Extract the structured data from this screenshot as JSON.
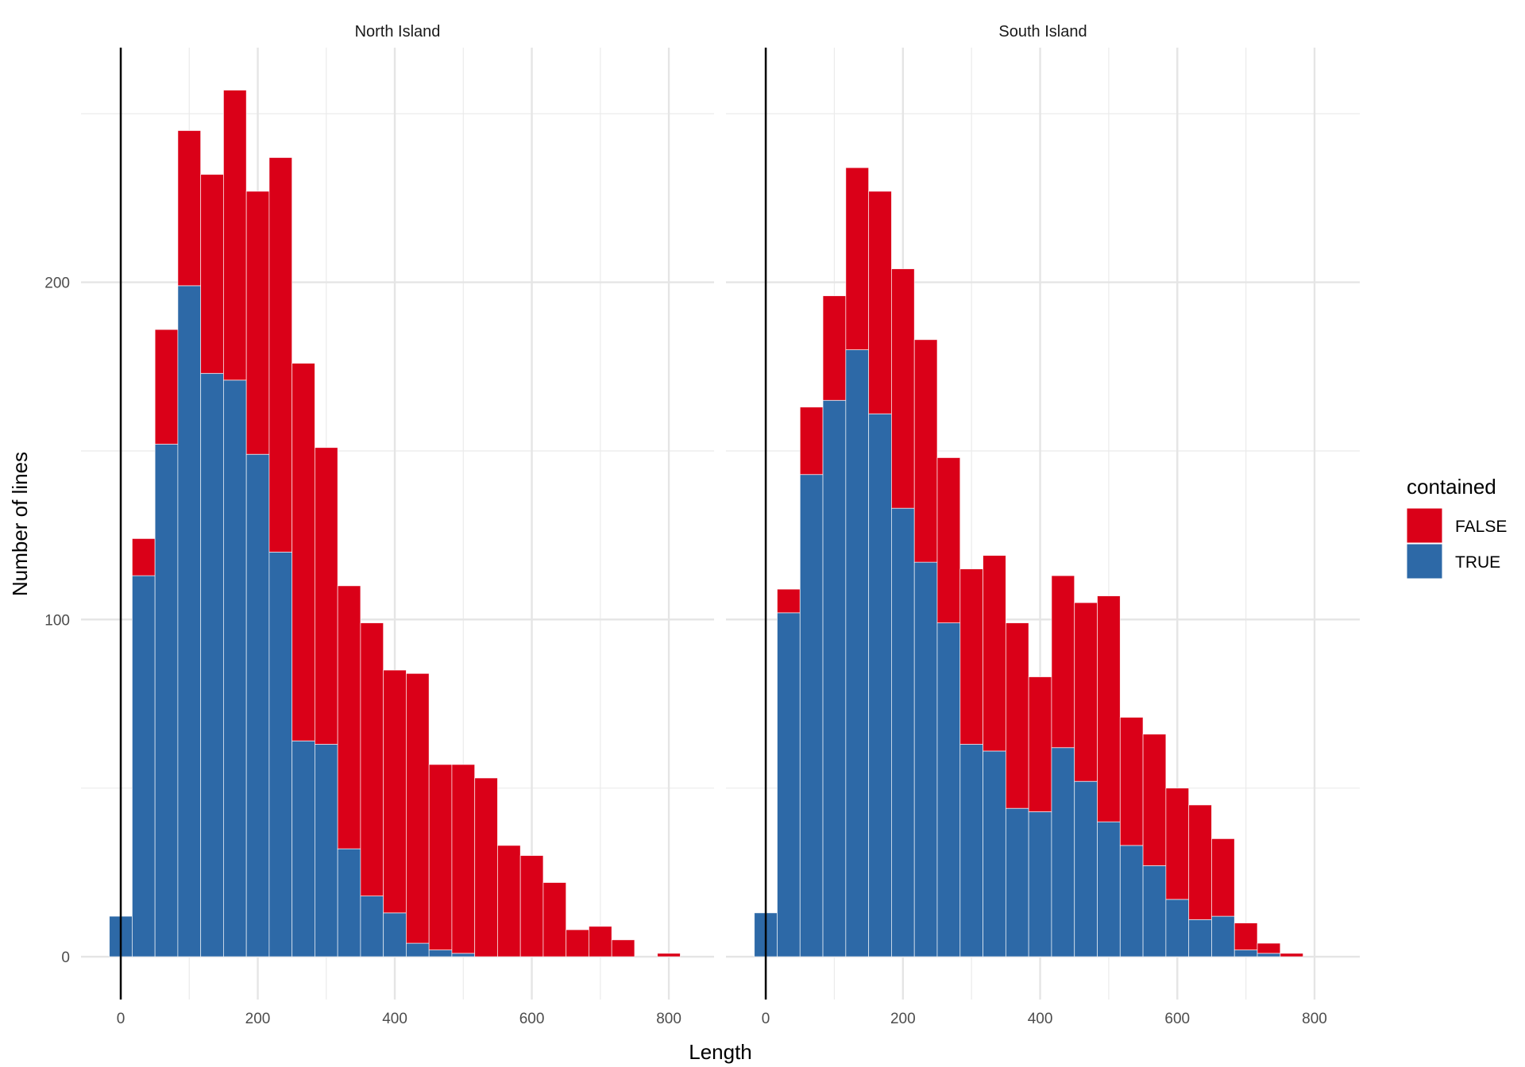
{
  "chart_data": {
    "type": "bar",
    "subtype": "stacked-histogram-faceted",
    "xlabel": "Length",
    "ylabel": "Number of lines",
    "grid": true,
    "legend": {
      "title": "contained",
      "position": "right",
      "entries": [
        {
          "label": "FALSE",
          "color": "#DA0018"
        },
        {
          "label": "TRUE",
          "color": "#2D69A7"
        }
      ]
    },
    "bin_width": 33.333,
    "bin_centers": [
      0,
      33.33,
      66.67,
      100,
      133.33,
      166.67,
      200,
      233.33,
      266.67,
      300,
      333.33,
      366.67,
      400,
      433.33,
      466.67,
      500,
      533.33,
      566.67,
      600,
      633.33,
      666.67,
      700,
      733.33,
      766.67,
      800
    ],
    "xlim": [
      -58,
      866
    ],
    "ylim": [
      -12.7,
      269.6
    ],
    "x_ticks": [
      0,
      200,
      400,
      600,
      800
    ],
    "x_tick_labels": [
      "0",
      "200",
      "400",
      "600",
      "800"
    ],
    "x_minor_ticks": [
      100,
      300,
      500,
      700
    ],
    "y_ticks": [
      0,
      100,
      200
    ],
    "y_tick_labels": [
      "0",
      "100",
      "200"
    ],
    "y_minor_ticks": [
      50,
      150,
      250
    ],
    "reference_line_x": 0,
    "panels": [
      {
        "title": "North Island",
        "series": [
          {
            "name": "TRUE",
            "values": [
              12,
              113,
              152,
              199,
              173,
              171,
              149,
              120,
              64,
              63,
              32,
              18,
              13,
              4,
              2,
              1,
              0,
              0,
              0,
              0,
              0,
              0,
              0,
              0,
              0
            ]
          },
          {
            "name": "FALSE",
            "values": [
              0,
              11,
              34,
              46,
              59,
              86,
              78,
              117,
              112,
              88,
              78,
              81,
              72,
              80,
              55,
              56,
              53,
              33,
              30,
              22,
              8,
              9,
              5,
              0,
              1
            ]
          }
        ]
      },
      {
        "title": "South Island",
        "series": [
          {
            "name": "TRUE",
            "values": [
              13,
              102,
              143,
              165,
              180,
              161,
              133,
              117,
              99,
              63,
              61,
              44,
              43,
              62,
              52,
              40,
              33,
              27,
              17,
              11,
              12,
              2,
              1,
              0,
              0
            ]
          },
          {
            "name": "FALSE",
            "values": [
              0,
              7,
              20,
              31,
              54,
              66,
              71,
              66,
              49,
              52,
              58,
              55,
              40,
              51,
              53,
              67,
              38,
              39,
              33,
              34,
              23,
              8,
              3,
              1,
              0
            ]
          }
        ]
      }
    ]
  }
}
